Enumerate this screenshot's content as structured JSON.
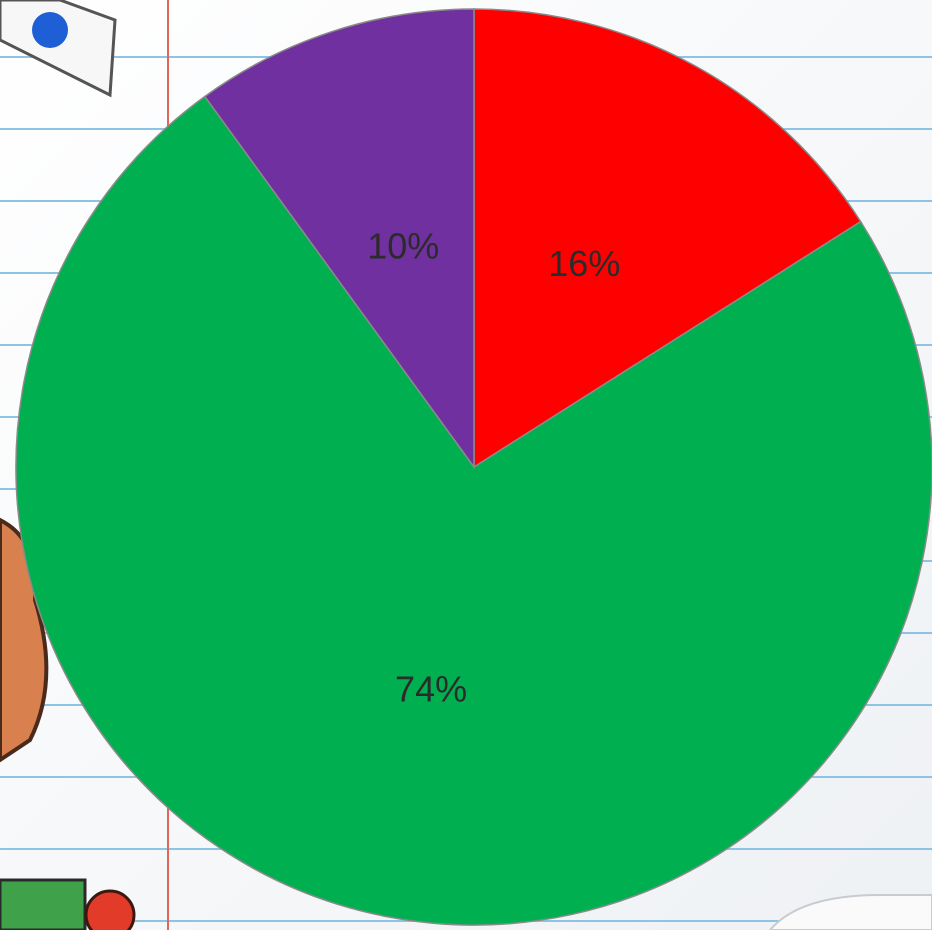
{
  "chart_data": {
    "type": "pie",
    "categories": [
      null,
      null,
      null
    ],
    "values": [
      16,
      74,
      10
    ],
    "value_labels": [
      "16%",
      "74%",
      "10%"
    ],
    "colors": [
      "#ff0000",
      "#00b050",
      "#7030a0"
    ]
  }
}
